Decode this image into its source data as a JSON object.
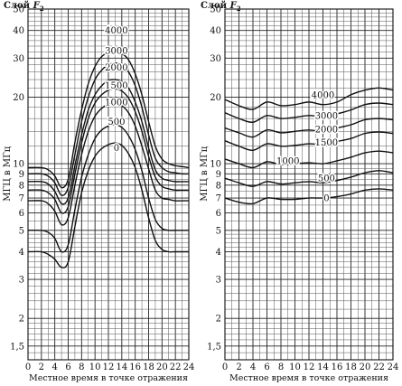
{
  "chart_data": [
    {
      "type": "line",
      "title": "Слой F2",
      "title_prefix": "Слой",
      "title_var": "F",
      "title_sub": "2",
      "xlabel": "Местное время в точке отражения",
      "ylabel": "МГЦ в МГц",
      "xlim": [
        0,
        24
      ],
      "ylim": [
        1.3,
        50
      ],
      "yscale": "log",
      "grid": true,
      "x_ticks": [
        "0",
        "2",
        "4",
        "6",
        "8",
        "10",
        "12",
        "14",
        "16",
        "18",
        "20",
        "22",
        "24"
      ],
      "y_ticks": [
        {
          "value": 50,
          "label": "50"
        },
        {
          "value": 40,
          "label": "40"
        },
        {
          "value": 30,
          "label": "30"
        },
        {
          "value": 20,
          "label": "20"
        },
        {
          "value": 10,
          "label": "10"
        },
        {
          "value": 9,
          "label": "9"
        },
        {
          "value": 8,
          "label": "8"
        },
        {
          "value": 7,
          "label": "7"
        },
        {
          "value": 6,
          "label": "6"
        },
        {
          "value": 5,
          "label": "5"
        },
        {
          "value": 4,
          "label": "4"
        },
        {
          "value": 3,
          "label": "3"
        },
        {
          "value": 2,
          "label": "2"
        },
        {
          "value": 1.5,
          "label": "1,5"
        }
      ],
      "x": [
        0,
        2,
        3,
        4,
        5,
        6,
        7,
        8,
        9,
        10,
        11,
        12,
        13,
        14,
        15,
        16,
        17,
        18,
        19,
        20,
        21,
        22,
        23,
        24
      ],
      "series": [
        {
          "name": "4000",
          "label_x": 13.2,
          "label_y": 40,
          "values": [
            9.6,
            9.6,
            9.4,
            8.8,
            7.8,
            8.5,
            12.5,
            17.5,
            23.0,
            27.5,
            30.5,
            31.8,
            32.0,
            31.5,
            29.5,
            25.5,
            20.5,
            15.5,
            12.0,
            10.5,
            10.0,
            9.8,
            9.7,
            9.6
          ]
        },
        {
          "name": "3000",
          "label_x": 13.2,
          "label_y": 32.5,
          "values": [
            9.0,
            9.0,
            8.8,
            8.2,
            7.2,
            7.8,
            11.0,
            15.5,
            20.0,
            24.0,
            26.5,
            28.0,
            28.5,
            28.0,
            26.0,
            22.5,
            18.0,
            13.5,
            10.6,
            9.6,
            9.2,
            9.1,
            9.0,
            9.0
          ]
        },
        {
          "name": "2000",
          "label_x": 13.2,
          "label_y": 27.3,
          "values": [
            8.3,
            8.3,
            8.1,
            7.5,
            6.6,
            7.0,
            9.8,
            13.5,
            17.5,
            20.5,
            22.5,
            23.8,
            24.0,
            23.5,
            22.0,
            19.0,
            15.5,
            11.8,
            9.4,
            8.6,
            8.4,
            8.3,
            8.3,
            8.3
          ]
        },
        {
          "name": "1500",
          "label_x": 13.2,
          "label_y": 22.6,
          "values": [
            7.6,
            7.6,
            7.4,
            6.9,
            6.0,
            6.4,
            9.0,
            12.4,
            16.0,
            18.8,
            20.5,
            21.5,
            21.8,
            21.3,
            19.8,
            17.2,
            14.0,
            10.8,
            8.7,
            7.9,
            7.7,
            7.6,
            7.6,
            7.6
          ]
        },
        {
          "name": "1000",
          "label_x": 13.2,
          "label_y": 19.0,
          "values": [
            6.8,
            6.8,
            6.6,
            6.1,
            5.3,
            5.7,
            8.0,
            11.0,
            14.0,
            16.4,
            17.8,
            18.6,
            18.8,
            18.3,
            17.0,
            14.8,
            12.0,
            9.5,
            7.6,
            7.0,
            6.9,
            6.8,
            6.8,
            6.8
          ]
        },
        {
          "name": "500",
          "label_x": 13.2,
          "label_y": 15.5,
          "values": [
            5.0,
            5.0,
            4.9,
            4.6,
            4.0,
            4.3,
            6.2,
            8.7,
            11.0,
            13.0,
            14.2,
            14.8,
            15.0,
            14.6,
            13.4,
            11.6,
            9.3,
            7.0,
            5.6,
            5.1,
            5.0,
            5.0,
            5.0,
            5.0
          ]
        },
        {
          "name": "0",
          "label_x": 13.2,
          "label_y": 11.8,
          "values": [
            4.0,
            4.0,
            3.9,
            3.7,
            3.4,
            3.6,
            5.2,
            7.4,
            9.3,
            10.8,
            11.7,
            12.2,
            12.4,
            12.1,
            11.1,
            9.6,
            7.6,
            5.7,
            4.5,
            4.1,
            4.0,
            4.0,
            4.0,
            4.0
          ]
        }
      ]
    },
    {
      "type": "line",
      "title": "Слой F2",
      "title_prefix": "Слой",
      "title_var": "F",
      "title_sub": "2",
      "xlabel": "Местное время в точке отражения",
      "ylabel": "МГЦ в МГц",
      "xlim": [
        0,
        24
      ],
      "ylim": [
        1.3,
        50
      ],
      "yscale": "log",
      "grid": true,
      "x_ticks": [
        "0",
        "2",
        "4",
        "6",
        "8",
        "10",
        "12",
        "14",
        "16",
        "18",
        "20",
        "22",
        "24"
      ],
      "y_ticks": [
        {
          "value": 50,
          "label": "50"
        },
        {
          "value": 40,
          "label": "40"
        },
        {
          "value": 30,
          "label": "30"
        },
        {
          "value": 20,
          "label": "20"
        },
        {
          "value": 10,
          "label": "10"
        },
        {
          "value": 9,
          "label": "9"
        },
        {
          "value": 8,
          "label": "8"
        },
        {
          "value": 7,
          "label": "7"
        },
        {
          "value": 6,
          "label": "6"
        },
        {
          "value": 5,
          "label": "5"
        },
        {
          "value": 4,
          "label": "4"
        },
        {
          "value": 3,
          "label": "3"
        },
        {
          "value": 2,
          "label": "2"
        },
        {
          "value": 1.5,
          "label": "1,5"
        }
      ],
      "x": [
        0,
        2,
        4,
        6,
        8,
        10,
        12,
        14,
        16,
        18,
        20,
        22,
        24
      ],
      "series": [
        {
          "name": "4000",
          "label_x": 14.0,
          "label_y": 20.5,
          "values": [
            19.5,
            18.3,
            17.6,
            19.0,
            18.3,
            18.5,
            19.0,
            18.5,
            19.0,
            20.5,
            21.5,
            22.0,
            21.5
          ]
        },
        {
          "name": "3000",
          "label_x": 14.5,
          "label_y": 16.5,
          "values": [
            17.0,
            16.0,
            15.4,
            16.5,
            16.0,
            16.2,
            16.5,
            16.3,
            16.8,
            17.5,
            18.5,
            18.8,
            18.5
          ]
        },
        {
          "name": "2000",
          "label_x": 14.5,
          "label_y": 14.3,
          "values": [
            14.5,
            13.8,
            13.2,
            14.2,
            13.8,
            14.0,
            14.2,
            14.0,
            14.5,
            15.0,
            15.8,
            16.0,
            15.8
          ]
        },
        {
          "name": "1500",
          "label_x": 14.5,
          "label_y": 12.5,
          "values": [
            12.7,
            12.0,
            11.5,
            12.3,
            12.0,
            12.1,
            12.3,
            12.2,
            12.6,
            13.0,
            13.7,
            13.9,
            13.7
          ]
        },
        {
          "name": "1000",
          "label_x": 9.0,
          "label_y": 10.3,
          "values": [
            10.5,
            10.0,
            9.6,
            10.2,
            9.9,
            10.0,
            10.1,
            10.0,
            10.3,
            10.7,
            11.2,
            11.4,
            11.2
          ]
        },
        {
          "name": "500",
          "label_x": 14.5,
          "label_y": 8.6,
          "values": [
            8.6,
            8.2,
            7.9,
            8.3,
            8.1,
            8.2,
            8.3,
            8.2,
            8.4,
            8.7,
            9.1,
            9.3,
            9.1
          ]
        },
        {
          "name": "0",
          "label_x": 14.5,
          "label_y": 7.0,
          "values": [
            7.0,
            6.7,
            6.6,
            7.0,
            6.9,
            6.9,
            7.0,
            7.0,
            7.1,
            7.3,
            7.6,
            7.7,
            7.6
          ]
        }
      ]
    }
  ]
}
